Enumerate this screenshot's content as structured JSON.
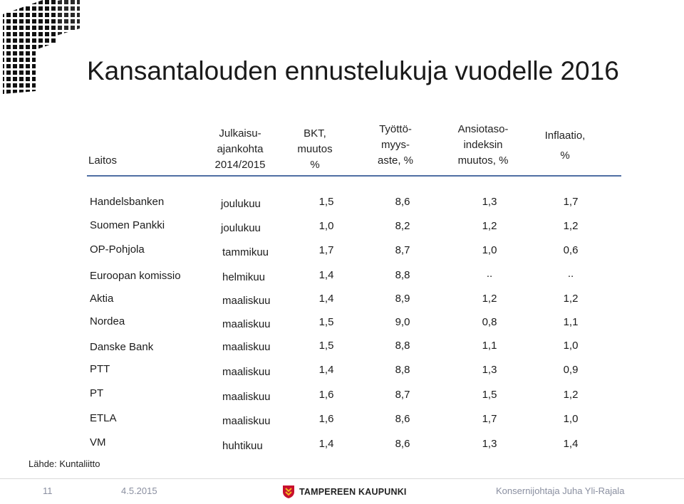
{
  "title": "Kansantalouden ennustelukuja vuodelle 2016",
  "headers": {
    "laitos": "Laitos",
    "julkaisu": [
      "Julkaisu-",
      "ajankohta",
      "2014/2015"
    ],
    "bkt": [
      "BKT,",
      "muutos",
      "%"
    ],
    "tyotto": [
      "Työttö-",
      "myys-",
      "aste, %"
    ],
    "ansio": [
      "Ansiotaso-",
      "indeksin",
      "muutos, %"
    ],
    "inflaatio": [
      "Inflaatio,",
      "%"
    ]
  },
  "rows": [
    {
      "laitos": "Handelsbanken",
      "aika": "joulukuu",
      "bkt": "1,5",
      "tyo": "8,6",
      "ansio": "1,3",
      "infl": "1,7"
    },
    {
      "laitos": "Suomen Pankki",
      "aika": "joulukuu",
      "bkt": "1,0",
      "tyo": "8,2",
      "ansio": "1,2",
      "infl": "1,2"
    },
    {
      "laitos": "OP-Pohjola",
      "aika": "tammikuu",
      "bkt": "1,7",
      "tyo": "8,7",
      "ansio": "1,0",
      "infl": "0,6"
    },
    {
      "laitos": "Euroopan komissio",
      "aika": "helmikuu",
      "bkt": "1,4",
      "tyo": "8,8",
      "ansio": "..",
      "infl": ".."
    },
    {
      "laitos": "Aktia",
      "aika": "maaliskuu",
      "bkt": "1,4",
      "tyo": "8,9",
      "ansio": "1,2",
      "infl": "1,2"
    },
    {
      "laitos": "Nordea",
      "aika": "maaliskuu",
      "bkt": "1,5",
      "tyo": "9,0",
      "ansio": "0,8",
      "infl": "1,1"
    },
    {
      "laitos": "Danske Bank",
      "aika": "maaliskuu",
      "bkt": "1,5",
      "tyo": "8,8",
      "ansio": "1,1",
      "infl": "1,0"
    },
    {
      "laitos": "PTT",
      "aika": "maaliskuu",
      "bkt": "1,4",
      "tyo": "8,8",
      "ansio": "1,3",
      "infl": "0,9"
    },
    {
      "laitos": "PT",
      "aika": "maaliskuu",
      "bkt": "1,6",
      "tyo": "8,7",
      "ansio": "1,5",
      "infl": "1,2"
    },
    {
      "laitos": "ETLA",
      "aika": "maaliskuu",
      "bkt": "1,6",
      "tyo": "8,6",
      "ansio": "1,7",
      "infl": "1,0"
    },
    {
      "laitos": "VM",
      "aika": "huhtikuu",
      "bkt": "1,4",
      "tyo": "8,6",
      "ansio": "1,3",
      "infl": "1,4"
    }
  ],
  "source": "Lähde: Kuntaliitto",
  "footer": {
    "page": "11",
    "date": "4.5.2015",
    "brand": "TAMPEREEN KAUPUNKI",
    "author": "Konsernijohtaja Juha Yli-Rajala"
  },
  "colors": {
    "rule": "#4f6fa3",
    "logo_orange": "#e8731c",
    "logo_yellow": "#f3b61f",
    "logo_red": "#c8102e",
    "footer_text": "#8a8fa0"
  },
  "icons": {
    "corner": "brick-pattern-logo",
    "brand": "tampere-coat-of-arms-icon"
  }
}
